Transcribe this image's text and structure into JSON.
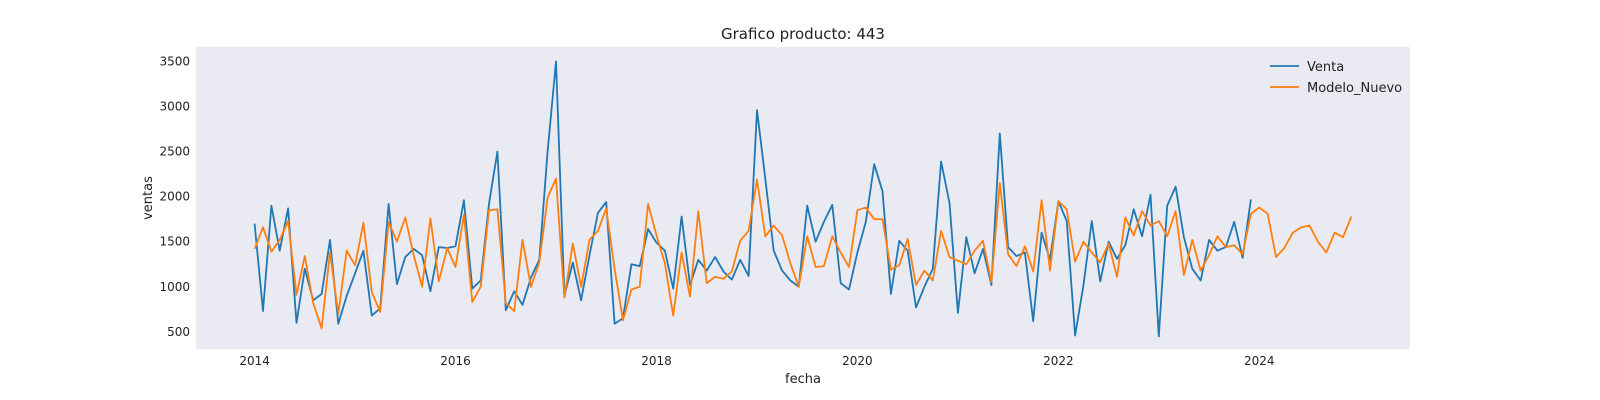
{
  "chart_data": {
    "type": "line",
    "title": "Grafico producto: 443",
    "xlabel": "fecha",
    "ylabel": "ventas",
    "x_start": "2014-01",
    "x_step": "month",
    "xlim": [
      "2013-06",
      "2025-07"
    ],
    "ylim": [
      310,
      3660
    ],
    "x_ticks": [
      "2014",
      "2016",
      "2018",
      "2020",
      "2022",
      "2024"
    ],
    "y_ticks": [
      500,
      1000,
      1500,
      2000,
      2500,
      3000,
      3500
    ],
    "grid": false,
    "background": "#eaeaf2",
    "legend": {
      "position": "top-right"
    },
    "series": [
      {
        "name": "Venta",
        "color": "#1f77b4",
        "values": [
          1700,
          730,
          1900,
          1400,
          1870,
          600,
          1200,
          850,
          920,
          1520,
          590,
          900,
          1150,
          1400,
          680,
          760,
          1920,
          1030,
          1330,
          1420,
          1350,
          950,
          1440,
          1430,
          1450,
          1960,
          980,
          1070,
          1920,
          2500,
          740,
          950,
          800,
          1100,
          1300,
          2500,
          3500,
          900,
          1270,
          850,
          1350,
          1820,
          1940,
          590,
          650,
          1250,
          1230,
          1640,
          1490,
          1400,
          980,
          1780,
          1020,
          1300,
          1180,
          1330,
          1170,
          1080,
          1300,
          1120,
          2960,
          2200,
          1400,
          1180,
          1070,
          1000,
          1900,
          1500,
          1720,
          1910,
          1040,
          970,
          1380,
          1720,
          2360,
          2060,
          920,
          1510,
          1400,
          770,
          1000,
          1200,
          2390,
          1930,
          710,
          1550,
          1150,
          1420,
          1020,
          2700,
          1440,
          1340,
          1380,
          620,
          1600,
          1300,
          1950,
          1730,
          460,
          1020,
          1730,
          1060,
          1500,
          1310,
          1460,
          1860,
          1560,
          2020,
          450,
          1900,
          2110,
          1550,
          1200,
          1070,
          1520,
          1400,
          1440,
          1720,
          1320,
          1970
        ],
        "extra_note": ""
      },
      {
        "name": "Modelo_Nuevo",
        "color": "#ff7f0e",
        "values": [
          1420,
          1660,
          1390,
          1520,
          1730,
          910,
          1340,
          820,
          540,
          1380,
          700,
          1400,
          1240,
          1710,
          940,
          720,
          1720,
          1500,
          1770,
          1350,
          1000,
          1760,
          1060,
          1430,
          1220,
          1800,
          830,
          1000,
          1850,
          1860,
          820,
          730,
          1520,
          1000,
          1270,
          1990,
          2200,
          880,
          1480,
          1000,
          1520,
          1620,
          1870,
          1200,
          630,
          970,
          1000,
          1920,
          1570,
          1260,
          680,
          1380,
          890,
          1840,
          1040,
          1110,
          1090,
          1170,
          1510,
          1620,
          2190,
          1560,
          1680,
          1570,
          1260,
          1000,
          1560,
          1220,
          1230,
          1560,
          1380,
          1220,
          1850,
          1880,
          1750,
          1750,
          1190,
          1240,
          1530,
          1020,
          1180,
          1070,
          1620,
          1330,
          1290,
          1250,
          1400,
          1510,
          1050,
          2150,
          1360,
          1230,
          1450,
          1170,
          1960,
          1180,
          1950,
          1860,
          1280,
          1500,
          1380,
          1270,
          1480,
          1110,
          1770,
          1570,
          1840,
          1680,
          1730,
          1560,
          1840,
          1130,
          1520,
          1180,
          1350,
          1560,
          1440,
          1460,
          1360,
          1810,
          1880,
          1810,
          1330,
          1430,
          1600,
          1660,
          1680,
          1500,
          1380,
          1600,
          1550,
          1780
        ]
      }
    ]
  }
}
